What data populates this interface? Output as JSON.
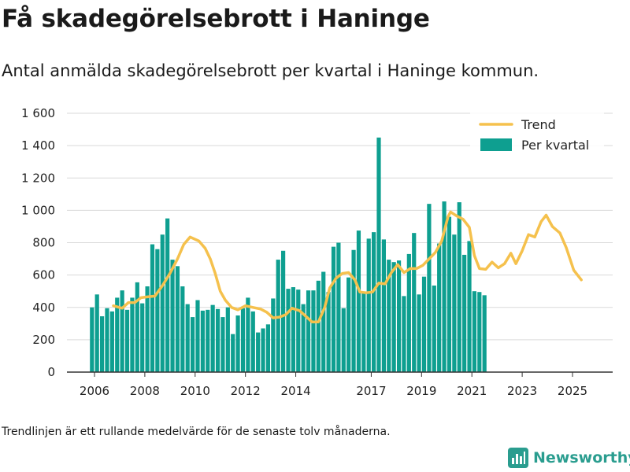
{
  "title": "Få skadegörelsebrott i Haninge",
  "subtitle": "Antal anmälda skadegörelsebrott per kvartal i Haninge kommun.",
  "footnote": "Trendlinjen är ett rullande medelvärde för de senaste tolv månaderna.",
  "brand": {
    "name": "Newsworthy",
    "icon": "bar-chart-logo-icon"
  },
  "colors": {
    "bar": "#0e9f90",
    "trend": "#f5c14d",
    "grid": "#d9d9d9",
    "axis": "#333333"
  },
  "chart_data": {
    "type": "bar",
    "title": "Få skadegörelsebrott i Haninge",
    "xlabel": "",
    "ylabel": "",
    "ylim": [
      0,
      1600
    ],
    "yticks": [
      0,
      200,
      400,
      600,
      800,
      1000,
      1200,
      1400,
      1600
    ],
    "ytick_labels": [
      "0",
      "200",
      "400",
      "600",
      "800",
      "1 000",
      "1 200",
      "1 400",
      "1 600"
    ],
    "xlim": [
      2006,
      2025.7
    ],
    "xticks": [
      2006,
      2008,
      2010,
      2012,
      2014,
      2017,
      2019,
      2021,
      2023,
      2025
    ],
    "xtick_labels": [
      "2006",
      "2008",
      "2010",
      "2012",
      "2014",
      "2017",
      "2019",
      "2021",
      "2023",
      "2025"
    ],
    "grid": true,
    "legend": {
      "position": "top-right",
      "items": [
        {
          "label": "Trend",
          "kind": "line"
        },
        {
          "label": "Per kvartal",
          "kind": "bar"
        }
      ]
    },
    "series": [
      {
        "name": "Per kvartal",
        "kind": "bar",
        "start": 2005.9,
        "step": 0.2,
        "values": [
          400,
          480,
          345,
          395,
          375,
          460,
          505,
          385,
          460,
          555,
          425,
          530,
          790,
          760,
          850,
          950,
          695,
          655,
          530,
          420,
          340,
          445,
          380,
          385,
          415,
          390,
          340,
          400,
          235,
          350,
          395,
          460,
          375,
          245,
          270,
          295,
          455,
          695,
          750,
          515,
          525,
          510,
          420,
          505,
          505,
          565,
          620,
          495,
          775,
          800,
          395,
          585,
          755,
          875,
          490,
          825,
          865,
          1450,
          820,
          695,
          680,
          690,
          470,
          730,
          860,
          480,
          590,
          1040,
          535,
          795,
          1055,
          960,
          850,
          1050,
          725,
          810,
          500,
          495,
          475
        ]
      },
      {
        "name": "Trend",
        "kind": "line",
        "points": [
          [
            2006.75,
            410
          ],
          [
            2007.1,
            395
          ],
          [
            2007.35,
            430
          ],
          [
            2007.6,
            430
          ],
          [
            2007.85,
            460
          ],
          [
            2008.1,
            465
          ],
          [
            2008.4,
            470
          ],
          [
            2008.7,
            535
          ],
          [
            2009.0,
            610
          ],
          [
            2009.3,
            700
          ],
          [
            2009.55,
            790
          ],
          [
            2009.8,
            835
          ],
          [
            2010.15,
            810
          ],
          [
            2010.4,
            765
          ],
          [
            2010.6,
            700
          ],
          [
            2010.8,
            610
          ],
          [
            2011.0,
            500
          ],
          [
            2011.2,
            445
          ],
          [
            2011.45,
            400
          ],
          [
            2011.7,
            385
          ],
          [
            2012.0,
            410
          ],
          [
            2012.3,
            400
          ],
          [
            2012.6,
            390
          ],
          [
            2012.85,
            370
          ],
          [
            2013.1,
            335
          ],
          [
            2013.35,
            340
          ],
          [
            2013.6,
            355
          ],
          [
            2013.85,
            395
          ],
          [
            2014.15,
            380
          ],
          [
            2014.4,
            345
          ],
          [
            2014.65,
            310
          ],
          [
            2014.9,
            310
          ],
          [
            2015.15,
            400
          ],
          [
            2015.35,
            520
          ],
          [
            2015.6,
            580
          ],
          [
            2015.85,
            610
          ],
          [
            2016.1,
            615
          ],
          [
            2016.35,
            570
          ],
          [
            2016.55,
            495
          ],
          [
            2016.8,
            490
          ],
          [
            2017.05,
            495
          ],
          [
            2017.3,
            550
          ],
          [
            2017.55,
            545
          ],
          [
            2017.8,
            615
          ],
          [
            2018.05,
            665
          ],
          [
            2018.3,
            615
          ],
          [
            2018.55,
            640
          ],
          [
            2018.8,
            640
          ],
          [
            2019.05,
            660
          ],
          [
            2019.3,
            700
          ],
          [
            2019.55,
            740
          ],
          [
            2019.8,
            810
          ],
          [
            2020.05,
            960
          ],
          [
            2020.15,
            990
          ],
          [
            2020.4,
            965
          ],
          [
            2020.65,
            945
          ],
          [
            2020.9,
            895
          ],
          [
            2021.1,
            720
          ],
          [
            2021.3,
            640
          ],
          [
            2021.55,
            635
          ],
          [
            2021.8,
            680
          ],
          [
            2022.05,
            645
          ],
          [
            2022.3,
            670
          ],
          [
            2022.55,
            735
          ],
          [
            2022.75,
            670
          ],
          [
            2023.0,
            750
          ],
          [
            2023.25,
            850
          ],
          [
            2023.5,
            835
          ],
          [
            2023.75,
            930
          ],
          [
            2023.95,
            970
          ],
          [
            2024.2,
            900
          ],
          [
            2024.5,
            860
          ],
          [
            2024.75,
            770
          ],
          [
            2025.05,
            630
          ],
          [
            2025.35,
            570
          ]
        ]
      }
    ]
  }
}
